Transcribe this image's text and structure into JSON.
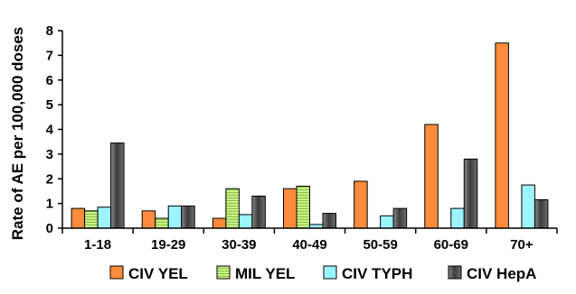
{
  "chart_data": {
    "type": "bar",
    "title": "",
    "xlabel": "",
    "ylabel": "Rate of AE per 100,000 doses",
    "ylim": [
      0,
      8
    ],
    "yticks": [
      "0",
      "1",
      "2",
      "3",
      "4",
      "5",
      "6",
      "7",
      "8"
    ],
    "categories": [
      "1-18",
      "19-29",
      "30-39",
      "40-49",
      "50-59",
      "60-69",
      "70+"
    ],
    "legend_position": "bottom",
    "grid": false,
    "series": [
      {
        "name": "CIV YEL",
        "color": "#ff8c3c",
        "pattern": "solid",
        "values": [
          0.8,
          0.7,
          0.4,
          1.6,
          1.9,
          4.2,
          7.5
        ]
      },
      {
        "name": "MIL YEL",
        "color": "#c8f08c",
        "pattern": "hstripe",
        "values": [
          0.7,
          0.4,
          1.6,
          1.7,
          0,
          0,
          0
        ]
      },
      {
        "name": "CIV TYPH",
        "color": "#9cf4ff",
        "pattern": "solid",
        "values": [
          0.85,
          0.9,
          0.55,
          0.15,
          0.5,
          0.8,
          1.75
        ]
      },
      {
        "name": "CIV HepA",
        "color": "#5a5a5a",
        "pattern": "gradient",
        "values": [
          3.45,
          0.9,
          1.3,
          0.6,
          0.8,
          2.8,
          1.15
        ]
      }
    ]
  }
}
